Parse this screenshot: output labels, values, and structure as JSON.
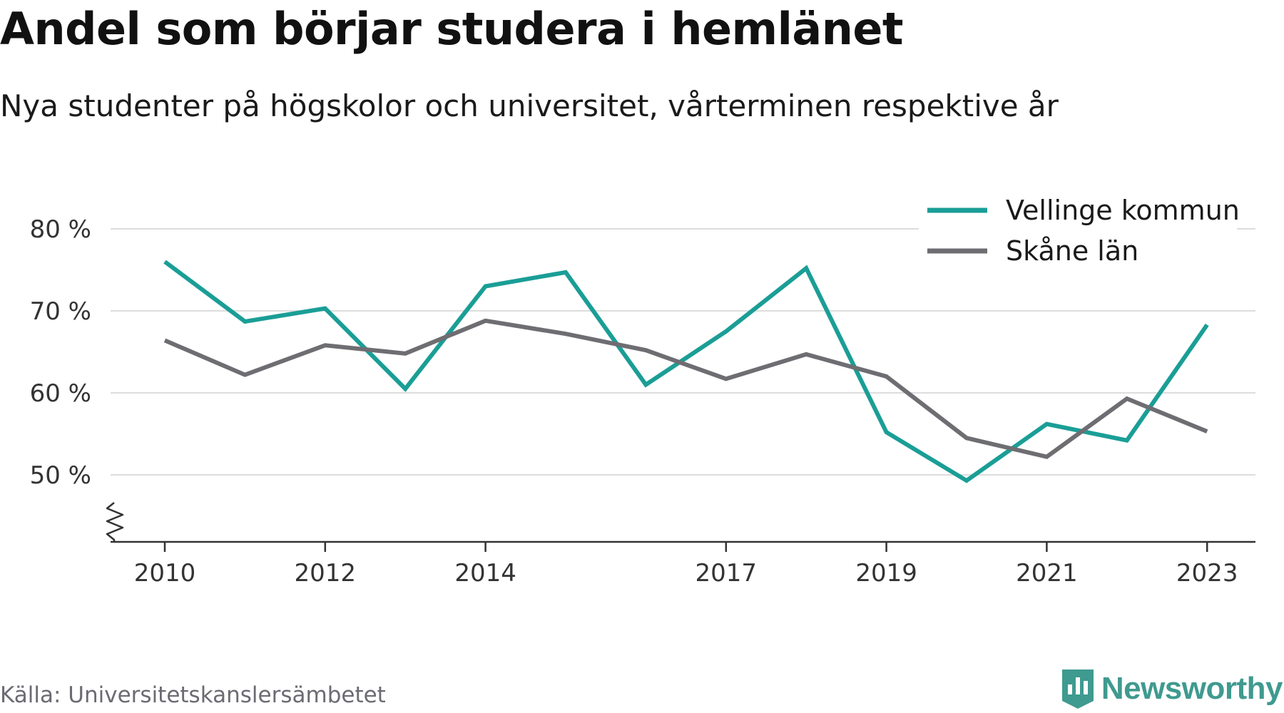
{
  "header": {
    "title": "Andel som börjar studera i hemlänet",
    "subtitle": "Nya studenter på högskolor och universitet, vårterminen respektive år"
  },
  "footer": {
    "source": "Källa: Universitetskanslersämbetet",
    "brand": "Newsworthy"
  },
  "colors": {
    "vellinge": "#1a9e96",
    "skane": "#6e6d72",
    "grid": "#dddddd",
    "axis": "#333333",
    "brand": "#3f9a8f"
  },
  "chart_data": {
    "type": "line",
    "title": "Andel som börjar studera i hemlänet",
    "subtitle": "Nya studenter på högskolor och universitet, vårterminen respektive år",
    "x": [
      2010,
      2011,
      2012,
      2013,
      2014,
      2015,
      2016,
      2017,
      2018,
      2019,
      2020,
      2021,
      2022,
      2023
    ],
    "x_tick_labels": [
      "2010",
      "2012",
      "2014",
      "2017",
      "2019",
      "2021",
      "2023"
    ],
    "y_ticks": [
      50,
      60,
      70,
      80
    ],
    "y_tick_labels": [
      "50 %",
      "60 %",
      "70 %",
      "80 %"
    ],
    "y_axis_break": true,
    "grid": true,
    "legend_position": "top-right",
    "series": [
      {
        "name": "Vellinge kommun",
        "color": "#1a9e96",
        "values": [
          76,
          68.7,
          70.3,
          60.5,
          73,
          74.7,
          61,
          67.5,
          75.2,
          55.2,
          49.3,
          56.2,
          54.2,
          68.3
        ]
      },
      {
        "name": "Skåne län",
        "color": "#6e6d72",
        "values": [
          66.4,
          62.2,
          65.8,
          64.8,
          68.8,
          67.2,
          65.2,
          61.7,
          64.7,
          62,
          54.5,
          52.2,
          59.3,
          55.3
        ]
      }
    ]
  }
}
